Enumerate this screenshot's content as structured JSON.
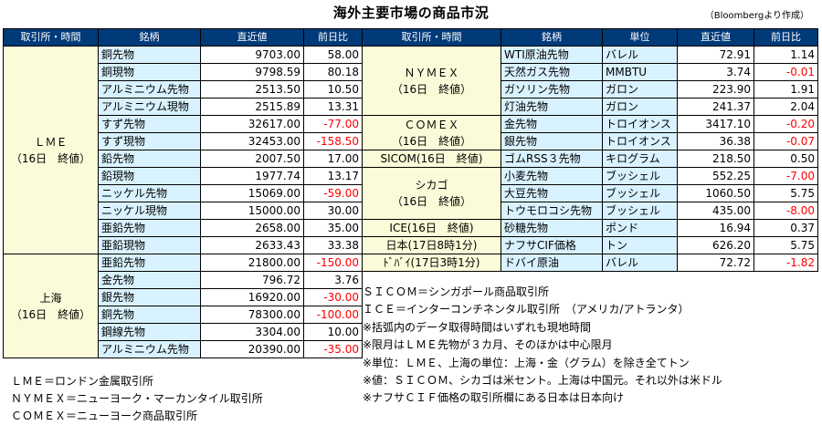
{
  "title": "海外主要市場の商品市況",
  "source": "（Bloombergより作成）",
  "headers": {
    "left": [
      "取引所・時間",
      "銘柄",
      "直近値",
      "前日比"
    ],
    "right": [
      "取引所・時間",
      "銘柄",
      "単位",
      "直近値",
      "前日比"
    ]
  },
  "exchanges": {
    "lme": [
      "ＬＭＥ",
      "（16日　終値）"
    ],
    "shanghai": [
      "上海",
      "（16日　終値）"
    ],
    "nymex": [
      "ＮＹＭＥＸ",
      "（16日　終値）"
    ],
    "comex": [
      "ＣＯＭＥＸ",
      "（16日　終値）"
    ],
    "sicom": "SICOM(16日　終値)",
    "chicago": [
      "シカゴ",
      "（16日　終値）"
    ],
    "ice": "ICE(16日　終値)",
    "japan": "日本(17日8時1分)",
    "dubai": "ﾄﾞﾊﾞｲ(17日3時1分)"
  },
  "left_rows": [
    {
      "name": "銅先物",
      "value": "9703.00",
      "change": "58.00"
    },
    {
      "name": "銅現物",
      "value": "9798.59",
      "change": "80.18"
    },
    {
      "name": "アルミニウム先物",
      "value": "2513.50",
      "change": "10.50"
    },
    {
      "name": "アルミニウム現物",
      "value": "2515.89",
      "change": "13.31"
    },
    {
      "name": "すず先物",
      "value": "32617.00",
      "change": "-77.00"
    },
    {
      "name": "すず現物",
      "value": "32453.00",
      "change": "-158.50"
    },
    {
      "name": "鉛先物",
      "value": "2007.50",
      "change": "17.00"
    },
    {
      "name": "鉛現物",
      "value": "1977.74",
      "change": "13.17"
    },
    {
      "name": "ニッケル先物",
      "value": "15069.00",
      "change": "-59.00"
    },
    {
      "name": "ニッケル現物",
      "value": "15000.00",
      "change": "30.00"
    },
    {
      "name": "亜鉛先物",
      "value": "2658.00",
      "change": "35.00"
    },
    {
      "name": "亜鉛現物",
      "value": "2633.43",
      "change": "33.38"
    },
    {
      "name": "亜鉛先物",
      "value": "21800.00",
      "change": "-150.00"
    },
    {
      "name": "金先物",
      "value": "796.72",
      "change": "3.76"
    },
    {
      "name": "銀先物",
      "value": "16920.00",
      "change": "-30.00"
    },
    {
      "name": "銅先物",
      "value": "78300.00",
      "change": "-100.00"
    },
    {
      "name": "鋼線先物",
      "value": "3304.00",
      "change": "10.00"
    },
    {
      "name": "アルミニウム先物",
      "value": "20390.00",
      "change": "-35.00"
    }
  ],
  "right_rows": [
    {
      "name": "WTI原油先物",
      "unit": "バレル",
      "value": "72.91",
      "change": "1.14"
    },
    {
      "name": "天然ガス先物",
      "unit": "MMBTU",
      "value": "3.74",
      "change": "-0.01"
    },
    {
      "name": "ガソリン先物",
      "unit": "ガロン",
      "value": "223.90",
      "change": "1.91"
    },
    {
      "name": "灯油先物",
      "unit": "ガロン",
      "value": "241.37",
      "change": "2.04"
    },
    {
      "name": "金先物",
      "unit": "トロイオンス",
      "value": "3417.10",
      "change": "-0.20"
    },
    {
      "name": "銀先物",
      "unit": "トロイオンス",
      "value": "36.38",
      "change": "-0.07"
    },
    {
      "name": "ゴムRSS３先物",
      "unit": "キログラム",
      "value": "218.50",
      "change": "0.50"
    },
    {
      "name": "小麦先物",
      "unit": "ブッシェル",
      "value": "552.25",
      "change": "-7.00"
    },
    {
      "name": "大豆先物",
      "unit": "ブッシェル",
      "value": "1060.50",
      "change": "5.75"
    },
    {
      "name": "トウモロコシ先物",
      "unit": "ブッシェル",
      "value": "435.00",
      "change": "-8.00"
    },
    {
      "name": "砂糖先物",
      "unit": "ポンド",
      "value": "16.94",
      "change": "0.37"
    },
    {
      "name": "ナフサCIF価格",
      "unit": "トン",
      "value": "626.20",
      "change": "5.75"
    },
    {
      "name": "ドバイ原油",
      "unit": "バレル",
      "value": "72.72",
      "change": "-1.82"
    }
  ],
  "notes_left": [
    "ＬＭＥ＝ロンドン金属取引所",
    "ＮＹＭＥＸ＝ニューヨーク・マーカンタイル取引所",
    "ＣＯＭＥＸ＝ニューヨーク商品取引所"
  ],
  "notes_right": [
    "ＳＩＣＯＭ＝シンガポール商品取引所",
    "ＩＣＥ＝インターコンチネンタル取引所　（アメリカ/アトランタ）",
    "※括弧内のデータ取得時間はいずれも現地時間",
    "※限月はＬＭＥ先物が３カ月、そのほかは中心限月",
    "※単位：ＬＭＥ、上海の単位：上海・金（グラム）を除き全てトン",
    "※値：ＳＩＣＯＭ、シカゴは米セント。上海は中国元。それ以外は米ドル",
    "※ナフサＣＩＦ価格の取引所欄にある日本は日本向け"
  ],
  "colors": {
    "header_bg": "#003a78",
    "exchange_bg": "#fbfbd9",
    "name_bg": "#d9f2ff",
    "negative": "#ff0000"
  }
}
